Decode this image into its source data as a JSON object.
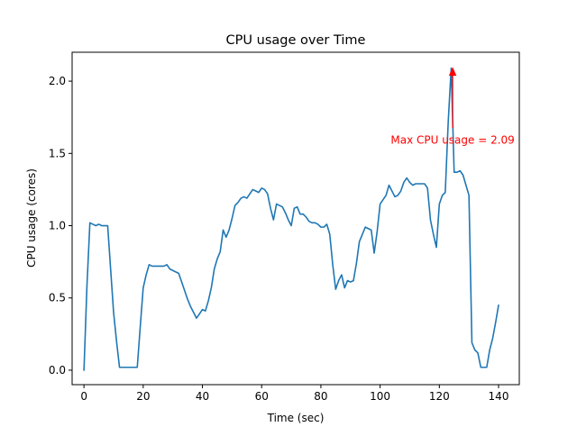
{
  "chart_data": {
    "type": "line",
    "title": "CPU usage over Time",
    "xlabel": "Time (sec)",
    "ylabel": "CPU usage (cores)",
    "xlim": [
      -4,
      147
    ],
    "ylim": [
      -0.1,
      2.2
    ],
    "xticks": [
      0,
      20,
      40,
      60,
      80,
      100,
      120,
      140
    ],
    "yticks": [
      0.0,
      0.5,
      1.0,
      1.5,
      2.0
    ],
    "xtick_labels": [
      "0",
      "20",
      "40",
      "60",
      "80",
      "100",
      "120",
      "140"
    ],
    "ytick_labels": [
      "0.0",
      "0.5",
      "1.0",
      "1.5",
      "2.0"
    ],
    "grid": false,
    "series": [
      {
        "color": "#1f77b4",
        "x": [
          0,
          1,
          2,
          3,
          4,
          5,
          6,
          7,
          8,
          9,
          10,
          11,
          12,
          13,
          14,
          15,
          16,
          17,
          18,
          19,
          20,
          21,
          22,
          23,
          24,
          25,
          26,
          27,
          28,
          29,
          30,
          31,
          32,
          33,
          34,
          35,
          36,
          37,
          38,
          39,
          40,
          41,
          42,
          43,
          44,
          45,
          46,
          47,
          48,
          49,
          50,
          51,
          52,
          53,
          54,
          55,
          56,
          57,
          58,
          59,
          60,
          61,
          62,
          63,
          64,
          65,
          66,
          67,
          68,
          69,
          70,
          71,
          72,
          73,
          74,
          75,
          76,
          77,
          78,
          79,
          80,
          81,
          82,
          83,
          84,
          85,
          86,
          87,
          88,
          89,
          90,
          91,
          92,
          93,
          94,
          95,
          96,
          97,
          98,
          99,
          100,
          101,
          102,
          103,
          104,
          105,
          106,
          107,
          108,
          109,
          110,
          111,
          112,
          113,
          114,
          115,
          116,
          117,
          118,
          119,
          120,
          121,
          122,
          123,
          124,
          125,
          126,
          127,
          128,
          129,
          130,
          131,
          132,
          133,
          134,
          135,
          136,
          137,
          138,
          139,
          140
        ],
        "y": [
          0.0,
          0.58,
          1.02,
          1.01,
          1.0,
          1.01,
          1.0,
          1.0,
          1.0,
          0.7,
          0.4,
          0.2,
          0.02,
          0.02,
          0.02,
          0.02,
          0.02,
          0.02,
          0.02,
          0.3,
          0.57,
          0.66,
          0.73,
          0.72,
          0.72,
          0.72,
          0.72,
          0.72,
          0.73,
          0.7,
          0.69,
          0.68,
          0.67,
          0.61,
          0.55,
          0.49,
          0.44,
          0.4,
          0.36,
          0.39,
          0.42,
          0.41,
          0.48,
          0.57,
          0.7,
          0.77,
          0.82,
          0.97,
          0.92,
          0.97,
          1.05,
          1.14,
          1.16,
          1.19,
          1.2,
          1.19,
          1.22,
          1.25,
          1.24,
          1.23,
          1.26,
          1.25,
          1.22,
          1.12,
          1.04,
          1.15,
          1.14,
          1.13,
          1.09,
          1.04,
          1.0,
          1.12,
          1.13,
          1.08,
          1.08,
          1.06,
          1.03,
          1.02,
          1.02,
          1.01,
          0.99,
          0.99,
          1.01,
          0.94,
          0.73,
          0.56,
          0.62,
          0.66,
          0.57,
          0.62,
          0.61,
          0.62,
          0.74,
          0.89,
          0.94,
          0.99,
          0.98,
          0.97,
          0.81,
          0.96,
          1.15,
          1.18,
          1.21,
          1.28,
          1.24,
          1.2,
          1.21,
          1.24,
          1.3,
          1.33,
          1.3,
          1.28,
          1.29,
          1.29,
          1.29,
          1.29,
          1.26,
          1.04,
          0.94,
          0.85,
          1.15,
          1.21,
          1.23,
          1.72,
          2.09,
          1.37,
          1.37,
          1.38,
          1.35,
          1.28,
          1.21,
          0.19,
          0.14,
          0.12,
          0.02,
          0.02,
          0.02,
          0.14,
          0.22,
          0.33,
          0.45
        ]
      }
    ],
    "annotations": [
      {
        "text": "Max CPU usage = 2.09",
        "color": "#ff0000",
        "xy": [
          124.5,
          2.09
        ],
        "xytext": [
          124.5,
          1.6
        ]
      }
    ]
  }
}
